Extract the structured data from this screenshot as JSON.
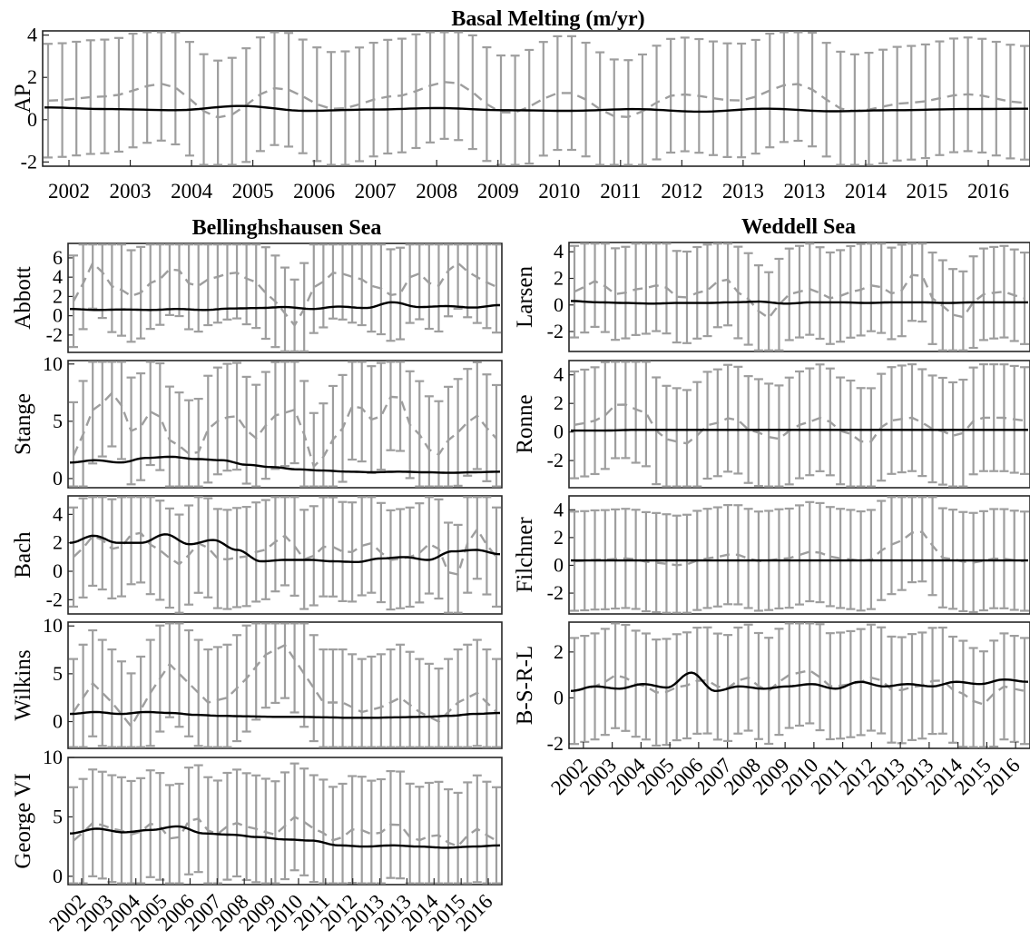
{
  "figure": {
    "title": "Basal Melting (m/yr)",
    "left_group_title": "Bellinghshausen Sea",
    "right_group_title": "Weddell Sea"
  },
  "chart_data": [
    {
      "type": "line",
      "ylabel": "AP",
      "ylim": [
        -2.2,
        4.2
      ],
      "yticks": [
        "-2",
        "0",
        "2",
        "4"
      ],
      "xticks": [
        "2002",
        "2003",
        "2004",
        "2005",
        "2006",
        "2007",
        "2008",
        "2009",
        "2010",
        "2011",
        "2012",
        "2013",
        "2013",
        "2014",
        "2015",
        "2016"
      ],
      "series": [
        {
          "values": [
            0.58,
            0.5,
            0.45,
            0.65,
            0.42,
            0.48,
            0.55,
            0.45,
            0.42,
            0.5,
            0.38,
            0.52,
            0.4,
            0.45,
            0.5,
            0.52
          ]
        },
        {
          "values": [
            0.9,
            1.1,
            1.7,
            0.1,
            1.5,
            0.5,
            1.1,
            1.8,
            0.3,
            1.3,
            0.1,
            1.2,
            0.9,
            1.7,
            0.4,
            0.8,
            1.2,
            0.8
          ]
        }
      ]
    },
    {
      "type": "line",
      "ylabel": "Abbott",
      "ylim": [
        -3.8,
        7.5
      ],
      "yticks": [
        "-2",
        "0",
        "2",
        "4",
        "6"
      ],
      "series": [
        {
          "values": [
            0.7,
            0.6,
            0.65,
            0.6,
            0.7,
            0.6,
            0.75,
            0.8,
            0.9,
            0.7,
            0.95,
            0.8,
            1.4,
            0.9,
            1.0,
            0.85,
            1.1
          ]
        },
        {
          "values": [
            1.5,
            5.5,
            3.0,
            2.0,
            3.5,
            5.0,
            3.0,
            4.0,
            4.5,
            3.5,
            1.5,
            -1.0,
            3.0,
            4.5,
            4.0,
            3.0,
            2.0,
            4.5,
            3.0,
            5.5,
            4.0,
            3.0
          ]
        }
      ]
    },
    {
      "type": "line",
      "ylabel": "Stange",
      "ylim": [
        -0.8,
        10.3
      ],
      "yticks": [
        "0",
        "5",
        "10"
      ],
      "series": [
        {
          "values": [
            1.4,
            1.6,
            1.4,
            1.8,
            1.9,
            1.7,
            1.6,
            1.2,
            1.0,
            0.8,
            0.7,
            0.6,
            0.55,
            0.6,
            0.55,
            0.5,
            0.55,
            0.6
          ]
        },
        {
          "values": [
            2.0,
            6.0,
            7.5,
            4.0,
            6.0,
            3.0,
            2.0,
            5.0,
            5.5,
            3.5,
            5.5,
            6.0,
            1.0,
            3.5,
            6.5,
            5.0,
            7.5,
            4.0,
            2.0,
            4.0,
            5.5,
            3.5
          ]
        }
      ]
    },
    {
      "type": "line",
      "ylabel": "Bach",
      "ylim": [
        -3.0,
        5.3
      ],
      "yticks": [
        "-2",
        "0",
        "2",
        "4"
      ],
      "series": [
        {
          "values": [
            2.0,
            2.5,
            2.0,
            2.0,
            2.6,
            1.9,
            2.2,
            1.5,
            0.7,
            0.8,
            0.8,
            0.7,
            0.65,
            0.9,
            1.0,
            0.8,
            1.4,
            1.5,
            1.2
          ]
        },
        {
          "values": [
            1.0,
            2.5,
            1.5,
            2.8,
            1.5,
            0.5,
            2.0,
            0.8,
            1.0,
            1.5,
            2.5,
            0.8,
            1.8,
            1.3,
            2.0,
            0.8,
            1.0,
            2.0,
            -0.5,
            3.0,
            1.0
          ]
        }
      ]
    },
    {
      "type": "line",
      "ylabel": "Wilkins",
      "ylim": [
        -2.8,
        10.4
      ],
      "yticks": [
        "0",
        "5",
        "10"
      ],
      "series": [
        {
          "values": [
            0.8,
            1.0,
            0.8,
            1.0,
            0.9,
            0.7,
            0.6,
            0.55,
            0.5,
            0.5,
            0.45,
            0.4,
            0.4,
            0.45,
            0.5,
            0.6,
            0.8,
            0.9
          ]
        },
        {
          "values": [
            1.0,
            4.0,
            2.0,
            -0.5,
            3.0,
            6.0,
            4.0,
            2.0,
            2.5,
            4.5,
            7.0,
            8.0,
            5.0,
            2.0,
            2.0,
            1.0,
            1.5,
            2.5,
            1.0,
            0.0,
            2.0,
            3.0,
            1.0
          ]
        }
      ]
    },
    {
      "type": "line",
      "ylabel": "George VI",
      "ylim": [
        -0.7,
        10.0
      ],
      "yticks": [
        "0",
        "5",
        "10"
      ],
      "xticks": [
        "2002",
        "2003",
        "2004",
        "2005",
        "2006",
        "2007",
        "2008",
        "2009",
        "2010",
        "2011",
        "2012",
        "2013",
        "2013",
        "2014",
        "2015",
        "2016"
      ],
      "series": [
        {
          "values": [
            3.6,
            4.0,
            3.7,
            3.9,
            4.2,
            3.6,
            3.5,
            3.3,
            3.1,
            3.0,
            2.6,
            2.5,
            2.6,
            2.5,
            2.4,
            2.5,
            2.6
          ]
        },
        {
          "values": [
            3.0,
            4.5,
            4.0,
            3.5,
            4.5,
            3.0,
            5.0,
            3.5,
            4.5,
            4.0,
            3.5,
            5.0,
            4.0,
            3.0,
            4.0,
            3.5,
            4.5,
            3.0,
            3.5,
            2.5,
            4.0,
            3.0
          ]
        }
      ]
    },
    {
      "type": "line",
      "ylabel": "Larsen",
      "ylim": [
        -3.5,
        4.7
      ],
      "yticks": [
        "-2",
        "0",
        "2",
        "4"
      ],
      "series": [
        {
          "values": [
            0.3,
            0.2,
            0.15,
            0.1,
            0.15,
            0.15,
            0.2,
            0.25,
            0.1,
            0.2,
            0.2,
            0.15,
            0.2,
            0.2,
            0.15,
            0.2,
            0.2,
            0.2
          ]
        },
        {
          "values": [
            1.0,
            1.8,
            0.8,
            1.2,
            1.5,
            0.5,
            1.0,
            2.0,
            0.5,
            -1.0,
            0.8,
            1.2,
            0.5,
            1.0,
            1.5,
            0.8,
            2.5,
            0.0,
            -1.0,
            0.8,
            1.0,
            0.5
          ]
        }
      ]
    },
    {
      "type": "line",
      "ylabel": "Ronne",
      "ylim": [
        -3.9,
        5.0
      ],
      "yticks": [
        "-2",
        "0",
        "2",
        "4"
      ],
      "series": [
        {
          "values": [
            0.1,
            0.1,
            0.15,
            0.15,
            0.15,
            0.15,
            0.15,
            0.15,
            0.15,
            0.15,
            0.15,
            0.15,
            0.15,
            0.15,
            0.15
          ]
        },
        {
          "values": [
            0.5,
            0.8,
            2.0,
            1.5,
            -0.5,
            -0.8,
            0.5,
            1.0,
            0.0,
            -0.5,
            0.5,
            1.0,
            0.0,
            -0.8,
            0.8,
            1.0,
            0.2,
            -0.3,
            1.0,
            1.0,
            0.8
          ]
        }
      ]
    },
    {
      "type": "line",
      "ylabel": "Filchner",
      "ylim": [
        -3.5,
        5.0
      ],
      "yticks": [
        "-2",
        "0",
        "2",
        "4"
      ],
      "series": [
        {
          "values": [
            0.35,
            0.35,
            0.35,
            0.35,
            0.35,
            0.35,
            0.35,
            0.35,
            0.35,
            0.35,
            0.35,
            0.35,
            0.35,
            0.35,
            0.35
          ]
        },
        {
          "values": [
            0.3,
            0.4,
            0.5,
            0.2,
            0.0,
            0.5,
            0.8,
            0.3,
            0.5,
            1.0,
            0.5,
            0.3,
            1.5,
            2.5,
            0.5,
            0.2,
            0.5,
            0.3
          ]
        }
      ]
    },
    {
      "type": "line",
      "ylabel": "B-S-R-L",
      "ylim": [
        -2.2,
        3.3
      ],
      "yticks": [
        "-2",
        "0",
        "2"
      ],
      "xticks": [
        "2002",
        "2003",
        "2004",
        "2005",
        "2006",
        "2007",
        "2008",
        "2009",
        "2010",
        "2011",
        "2012",
        "2013",
        "2013",
        "2014",
        "2015",
        "2016"
      ],
      "series": [
        {
          "values": [
            0.3,
            0.5,
            0.4,
            0.6,
            0.45,
            1.1,
            0.3,
            0.5,
            0.4,
            0.5,
            0.6,
            0.4,
            0.7,
            0.5,
            0.6,
            0.5,
            0.7,
            0.6,
            0.8,
            0.7
          ]
        },
        {
          "values": [
            0.3,
            0.5,
            1.0,
            0.6,
            0.2,
            0.5,
            0.8,
            0.4,
            0.9,
            0.3,
            1.0,
            1.2,
            0.5,
            0.6,
            0.9,
            0.3,
            0.5,
            0.8,
            0.2,
            -0.3,
            0.5,
            0.3
          ]
        }
      ]
    }
  ]
}
